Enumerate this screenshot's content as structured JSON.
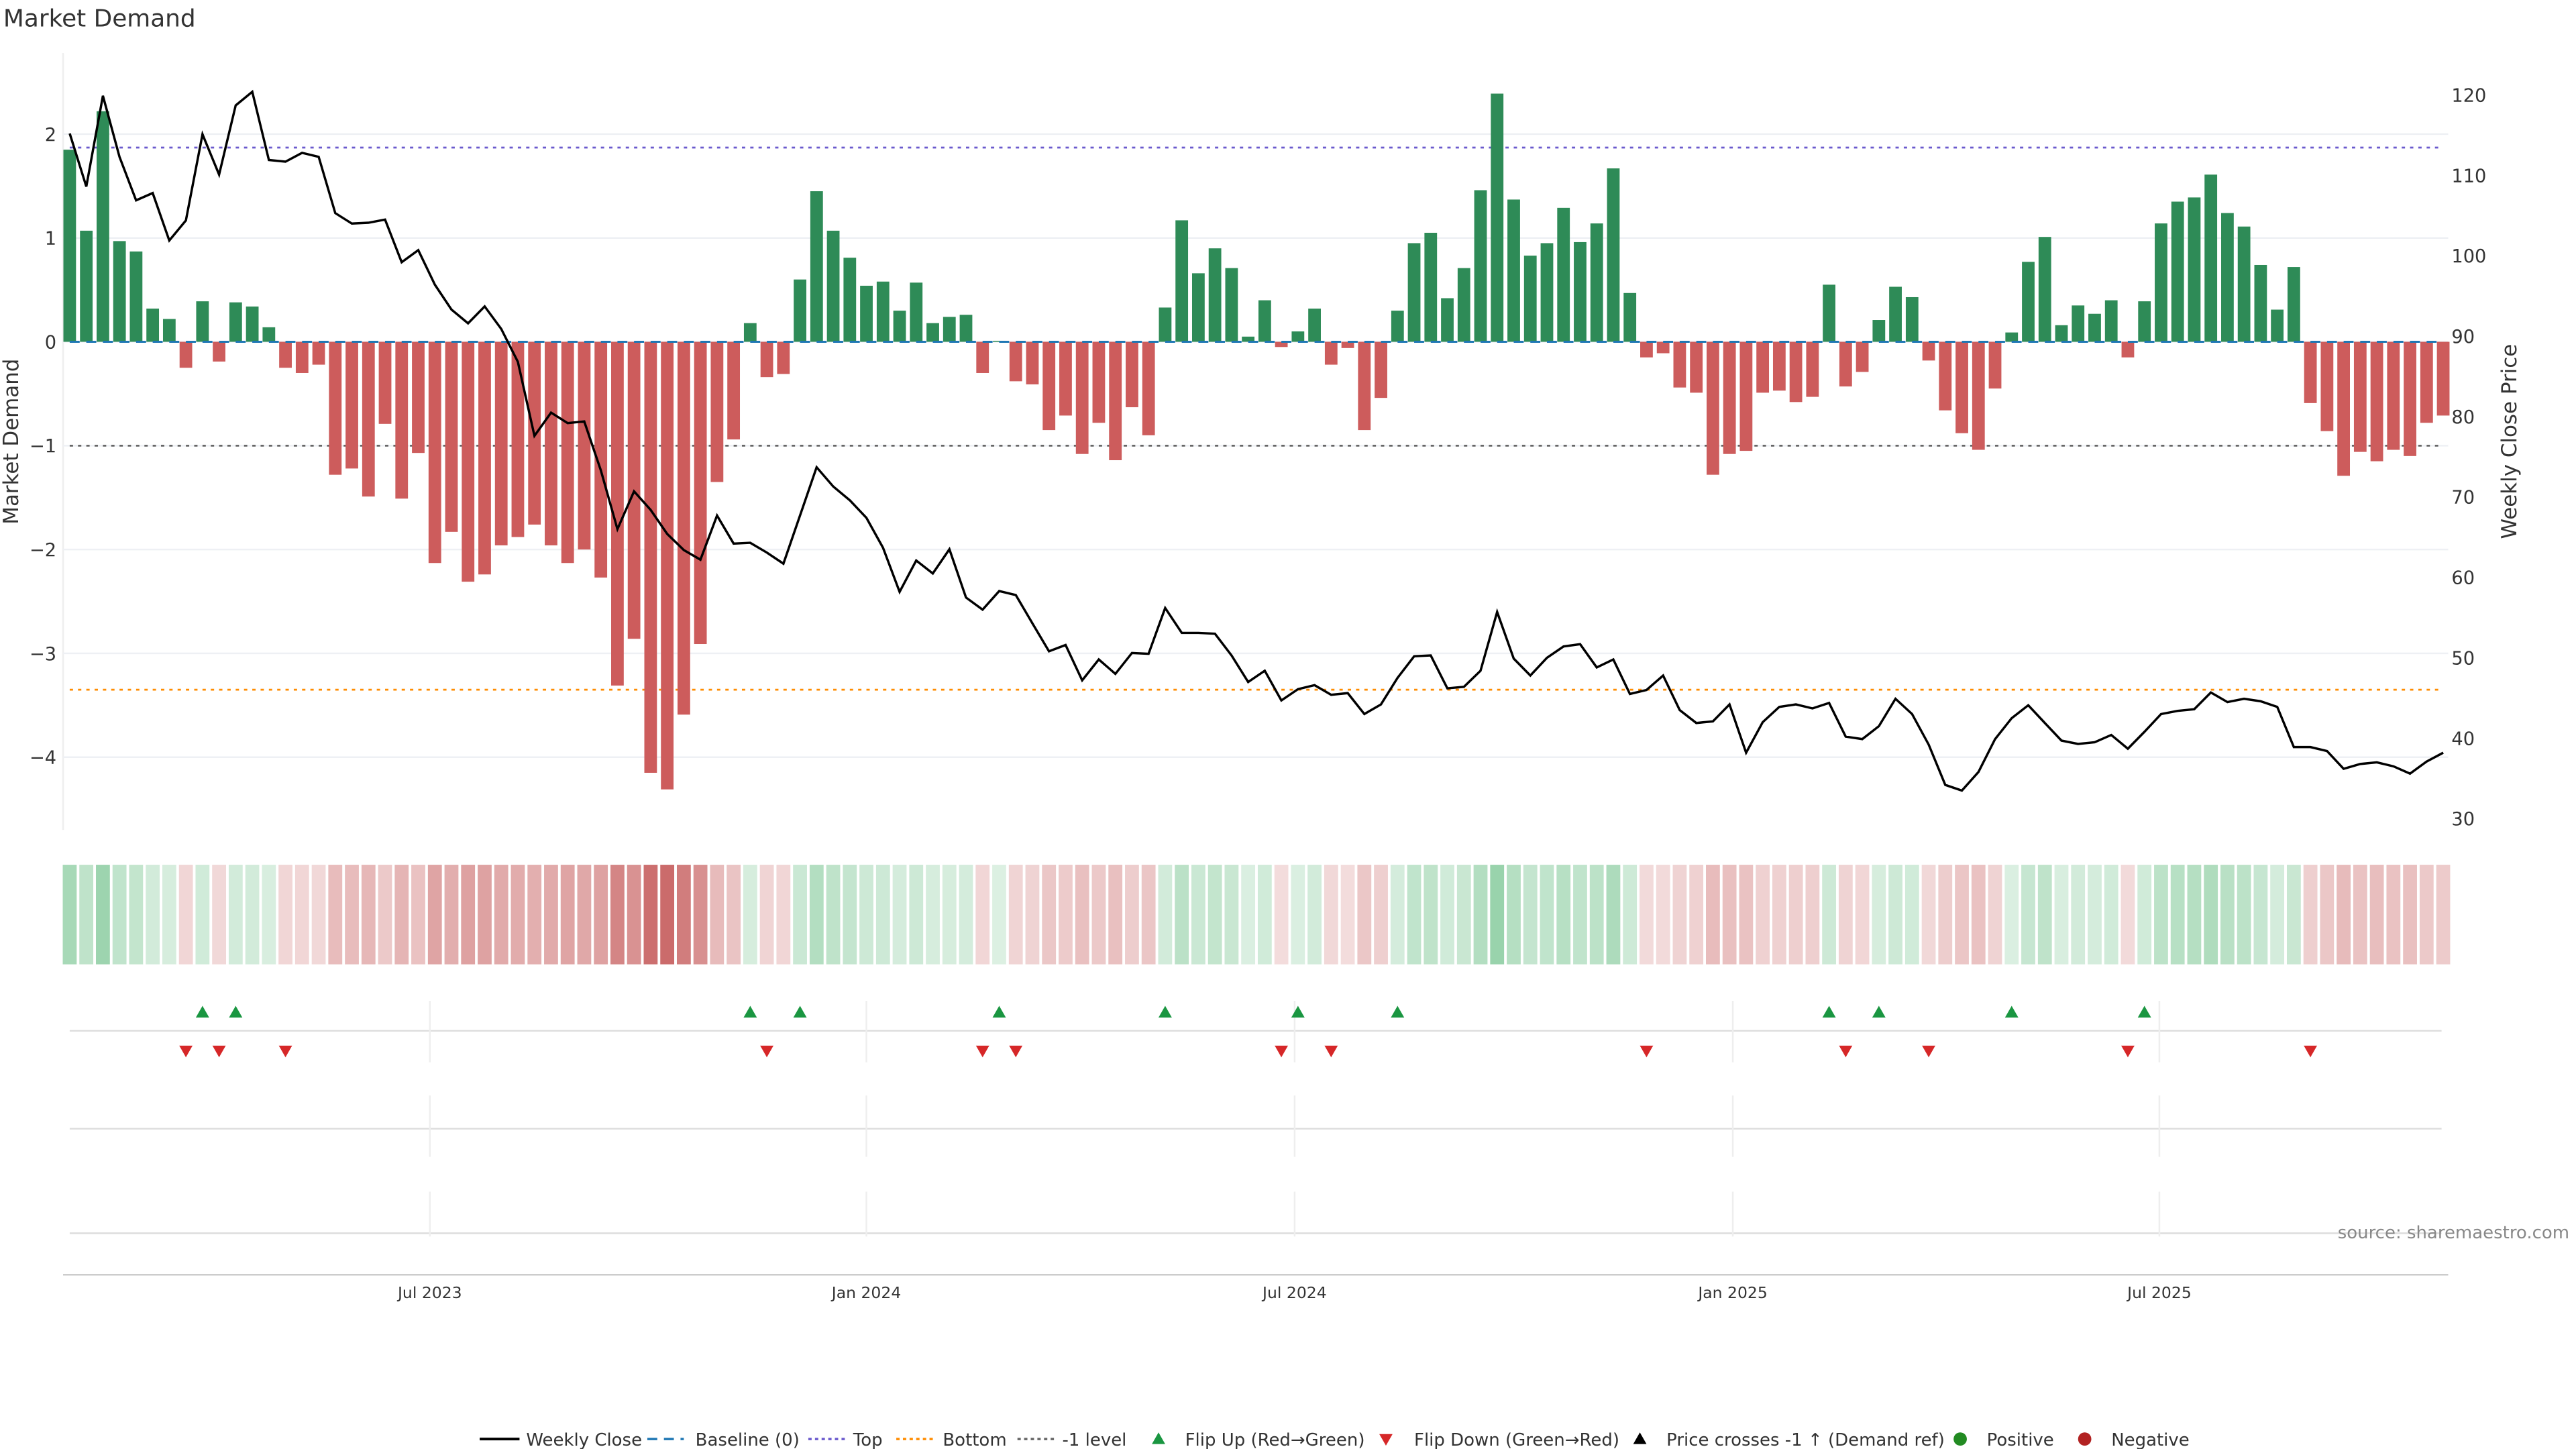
{
  "title": "Market Demand",
  "source": "source: sharemaestro.com",
  "colors": {
    "positive": "#2e8b57",
    "negative": "#cd5c5c",
    "price": "#000000",
    "baseline": "#1f77b4",
    "top": "#6a5acd",
    "bottom": "#ff8c00",
    "minus1": "#666666",
    "flip_up": "#1a9641",
    "flip_down": "#d62728"
  },
  "chart_data": {
    "type": "bar",
    "title": "Market Demand",
    "ylabel": "Market Demand",
    "y2label": "Weekly Close Price",
    "ylim": [
      -4.7,
      2.78
    ],
    "y2lim": [
      28.6,
      125.2
    ],
    "yticks": [
      "-4",
      "-3",
      "-2",
      "-1",
      "0",
      "1",
      "2"
    ],
    "yticks_display": [
      "−4",
      "−3",
      "−2",
      "−1",
      "0",
      "1",
      "2"
    ],
    "y2ticks": [
      "30",
      "40",
      "50",
      "60",
      "70",
      "80",
      "90",
      "100",
      "110",
      "120"
    ],
    "xticks": [
      {
        "label": "Jul 2023",
        "week": 21.7
      },
      {
        "label": "Jan 2024",
        "week": 48.0
      },
      {
        "label": "Jul 2024",
        "week": 73.8
      },
      {
        "label": "Jan 2025",
        "week": 100.2
      },
      {
        "label": "Jul 2025",
        "week": 125.9
      }
    ],
    "reference_lines": {
      "top": 1.87,
      "baseline": 0,
      "minus1": -1,
      "bottom": -3.35
    },
    "demand": [
      1.85,
      1.07,
      2.22,
      0.97,
      0.87,
      0.32,
      0.22,
      -0.25,
      0.39,
      -0.19,
      0.38,
      0.34,
      0.14,
      -0.25,
      -0.3,
      -0.22,
      -1.28,
      -1.22,
      -1.49,
      -0.79,
      -1.51,
      -1.07,
      -2.13,
      -1.83,
      -2.31,
      -2.24,
      -1.96,
      -1.88,
      -1.76,
      -1.96,
      -2.13,
      -2.0,
      -2.27,
      -3.31,
      -2.86,
      -4.15,
      -4.31,
      -3.59,
      -2.91,
      -1.35,
      -0.94,
      0.18,
      -0.34,
      -0.31,
      0.6,
      1.45,
      1.07,
      0.81,
      0.54,
      0.58,
      0.3,
      0.57,
      0.18,
      0.24,
      0.26,
      -0.3,
      0.01,
      -0.38,
      -0.41,
      -0.85,
      -0.71,
      -1.08,
      -0.78,
      -1.14,
      -0.63,
      -0.9,
      0.33,
      1.17,
      0.66,
      0.9,
      0.71,
      0.05,
      0.4,
      -0.05,
      0.1,
      0.32,
      -0.22,
      -0.06,
      -0.85,
      -0.54,
      0.3,
      0.95,
      1.05,
      0.42,
      0.71,
      1.46,
      2.39,
      1.37,
      0.83,
      0.95,
      1.29,
      0.96,
      1.14,
      1.67,
      0.47,
      -0.15,
      -0.11,
      -0.44,
      -0.49,
      -1.28,
      -1.08,
      -1.05,
      -0.49,
      -0.47,
      -0.58,
      -0.53,
      0.55,
      -0.43,
      -0.29,
      0.21,
      0.53,
      0.43,
      -0.18,
      -0.66,
      -0.88,
      -1.04,
      -0.45,
      0.09,
      0.77,
      1.01,
      0.16,
      0.35,
      0.27,
      0.4,
      -0.15,
      0.39,
      1.14,
      1.35,
      1.39,
      1.61,
      1.24,
      1.11,
      0.74,
      0.31,
      0.72,
      -0.59,
      -0.86,
      -1.29,
      -1.06,
      -1.15,
      -1.04,
      -1.1,
      -0.78,
      -0.71
    ],
    "weekly_close": [
      115.2,
      108.6,
      119.9,
      112.3,
      106.9,
      107.8,
      101.9,
      104.4,
      115.1,
      110.1,
      118.7,
      120.4,
      111.9,
      111.7,
      112.8,
      112.3,
      105.3,
      104.0,
      104.1,
      104.5,
      99.2,
      100.7,
      96.4,
      93.3,
      91.6,
      93.7,
      90.9,
      86.8,
      77.6,
      80.5,
      79.2,
      79.4,
      73.3,
      66.0,
      70.7,
      68.4,
      65.4,
      63.4,
      62.2,
      67.7,
      64.2,
      64.3,
      63.1,
      61.7,
      67.7,
      73.7,
      71.3,
      69.6,
      67.4,
      63.7,
      58.2,
      62.1,
      60.5,
      63.5,
      57.5,
      56.0,
      58.3,
      57.8,
      54.3,
      50.8,
      51.6,
      47.2,
      49.8,
      48.0,
      50.6,
      50.5,
      56.2,
      53.1,
      53.1,
      53.0,
      50.3,
      47.0,
      48.4,
      44.7,
      46.1,
      46.6,
      45.4,
      45.6,
      43.0,
      44.2,
      47.5,
      50.2,
      50.3,
      46.2,
      46.4,
      48.4,
      55.7,
      49.9,
      47.8,
      50.0,
      51.4,
      51.7,
      48.8,
      49.8,
      45.5,
      46.0,
      47.8,
      43.5,
      41.9,
      42.1,
      44.2,
      38.2,
      42.0,
      43.9,
      44.2,
      43.7,
      44.4,
      40.2,
      39.9,
      41.5,
      44.9,
      43.0,
      39.2,
      34.2,
      33.5,
      35.8,
      39.9,
      42.5,
      44.1,
      41.9,
      39.7,
      39.3,
      39.5,
      40.4,
      38.7,
      40.8,
      43.0,
      43.4,
      43.6,
      45.7,
      44.5,
      44.9,
      44.6,
      43.9,
      38.9,
      38.9,
      38.4,
      36.2,
      36.8,
      37.0,
      36.5,
      35.6,
      37.1,
      38.2
    ]
  },
  "legend": [
    {
      "label": "Weekly Close",
      "symbol": "line",
      "color": "#000000"
    },
    {
      "label": "Baseline (0)",
      "symbol": "dash",
      "color": "#1f77b4"
    },
    {
      "label": "Top",
      "symbol": "dot",
      "color": "#6a5acd"
    },
    {
      "label": "Bottom",
      "symbol": "dot",
      "color": "#ff8c00"
    },
    {
      "label": "-1 level",
      "symbol": "dot",
      "color": "#666666"
    },
    {
      "label": "Flip Up (Red→Green)",
      "symbol": "tri-up",
      "color": "#1a9641"
    },
    {
      "label": "Flip Down (Green→Red)",
      "symbol": "tri-down",
      "color": "#d62728"
    },
    {
      "label": "Price crosses -1 ↑ (Demand ref)",
      "symbol": "tri-up",
      "color": "#000000"
    },
    {
      "label": "Positive",
      "symbol": "circle",
      "color": "#228b22"
    },
    {
      "label": "Negative",
      "symbol": "circle",
      "color": "#b22222"
    }
  ]
}
